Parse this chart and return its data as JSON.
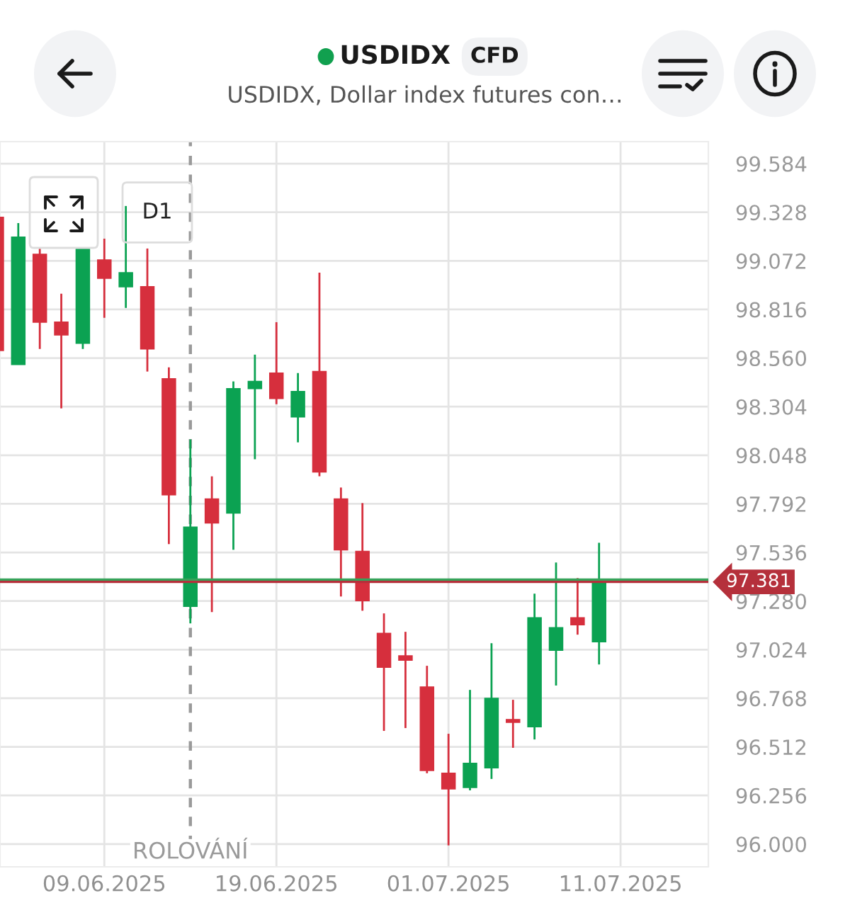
{
  "chart_data": {
    "type": "candlestick",
    "title": "USDIDX",
    "subtitle": "USDIDX, Dollar index futures con…",
    "annotations": [
      "CFD",
      "D1",
      "ROLOVÁNÍ"
    ],
    "categories": [
      null,
      null,
      null,
      null,
      null,
      "09.06.2025",
      null,
      null,
      null,
      null,
      null,
      null,
      null,
      "19.06.2025",
      null,
      null,
      null,
      null,
      null,
      null,
      null,
      "01.07.2025",
      null,
      null,
      null,
      null,
      null,
      null,
      null,
      "11.07.2025",
      null,
      null,
      null,
      null
    ],
    "ohlc": [
      [
        99.301,
        99.301,
        98.6,
        98.6
      ],
      [
        98.526,
        99.271,
        98.526,
        99.197
      ],
      [
        99.107,
        99.137,
        98.608,
        98.749
      ],
      [
        98.749,
        98.899,
        98.295,
        98.682
      ],
      [
        98.638,
        99.137,
        98.608,
        99.137
      ],
      [
        99.077,
        99.189,
        98.772,
        98.98
      ],
      [
        98.936,
        99.361,
        98.824,
        99.01
      ],
      [
        98.936,
        99.137,
        98.489,
        98.608
      ],
      [
        98.451,
        98.511,
        97.58,
        97.84
      ],
      [
        97.252,
        98.131,
        97.162,
        97.669
      ],
      [
        97.818,
        97.937,
        97.222,
        97.691
      ],
      [
        97.744,
        98.437,
        97.55,
        98.399
      ],
      [
        98.399,
        98.578,
        98.027,
        98.437
      ],
      [
        98.481,
        98.749,
        98.317,
        98.347
      ],
      [
        98.25,
        98.481,
        98.116,
        98.384
      ],
      [
        98.489,
        99.01,
        97.937,
        97.96
      ],
      [
        97.818,
        97.878,
        97.304,
        97.55
      ],
      [
        97.542,
        97.796,
        97.229,
        97.282
      ],
      [
        97.11,
        97.215,
        96.596,
        96.931
      ],
      [
        96.991,
        97.118,
        96.611,
        96.969
      ],
      [
        96.827,
        96.939,
        96.373,
        96.388
      ],
      [
        96.373,
        96.581,
        95.993,
        96.291
      ],
      [
        96.298,
        96.812,
        96.283,
        96.425
      ],
      [
        96.402,
        97.058,
        96.343,
        96.768
      ],
      [
        96.656,
        96.76,
        96.507,
        96.641
      ],
      [
        96.618,
        97.319,
        96.551,
        97.192
      ],
      [
        97.021,
        97.483,
        96.835,
        97.14
      ],
      [
        97.192,
        97.401,
        97.103,
        97.155
      ],
      [
        97.066,
        97.587,
        96.946,
        97.379
      ],
      null,
      null,
      null,
      null,
      null
    ],
    "colors": [
      "#d62f3d",
      "#0ba252",
      "#d62f3d",
      "#d62f3d",
      "#0ba252",
      "#d62f3d",
      "#0ba252",
      "#d62f3d",
      "#d62f3d",
      "#0ba252",
      "#d62f3d",
      "#0ba252",
      "#0ba252",
      "#d62f3d",
      "#0ba252",
      "#d62f3d",
      "#d62f3d",
      "#d62f3d",
      "#d62f3d",
      "#d62f3d",
      "#d62f3d",
      "#d62f3d",
      "#0ba252",
      "#0ba252",
      "#d62f3d",
      "#0ba252",
      "#0ba252",
      "#d62f3d",
      "#0ba252",
      null,
      null,
      null,
      null,
      null
    ],
    "ylim": [
      95.88,
      99.7
    ],
    "yticks": [
      {
        "value": 96.0,
        "label": "96.000"
      },
      96.256,
      96.512,
      96.768,
      97.024,
      {
        "value": 97.28,
        "label": "97.280"
      },
      97.536,
      97.792,
      98.048,
      98.304,
      {
        "value": 98.56,
        "label": "98.560"
      },
      98.816,
      99.072,
      99.328,
      99.584
    ],
    "grid": true,
    "ref_lines": [
      {
        "axis": "y",
        "value": 97.393,
        "color": "#37a35a"
      },
      {
        "axis": "y",
        "value": 97.381,
        "label": "97.381",
        "color": "#b5303b"
      }
    ]
  }
}
